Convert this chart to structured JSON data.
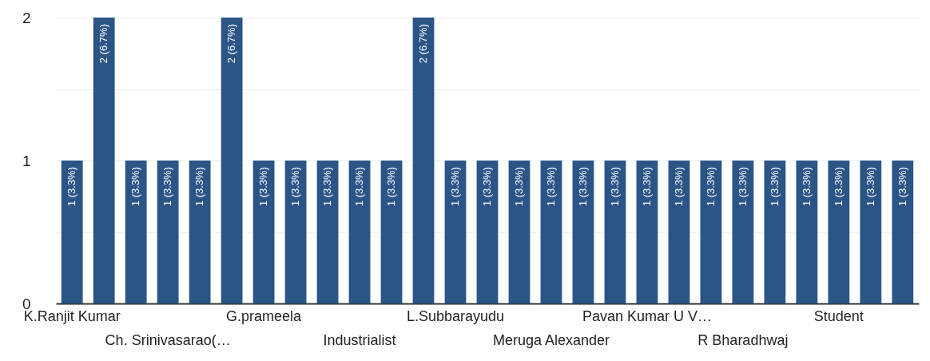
{
  "chart_data": {
    "type": "bar",
    "categories": [
      "K.Ranjit Kumar",
      null,
      null,
      "Ch. Srinivasarao(…",
      null,
      null,
      "G.prameela",
      null,
      null,
      "Industrialist",
      null,
      null,
      "L.Subbarayudu",
      null,
      null,
      "Meruga Alexander",
      null,
      null,
      "Pavan Kumar U V…",
      null,
      null,
      "R Bharadhwaj",
      null,
      null,
      "Student",
      null,
      null
    ],
    "values": [
      1,
      2,
      1,
      1,
      1,
      2,
      1,
      1,
      1,
      1,
      1,
      2,
      1,
      1,
      1,
      1,
      1,
      1,
      1,
      1,
      1,
      1,
      1,
      1,
      1,
      1,
      1
    ],
    "value_labels": [
      "1 (3.3%)",
      "2 (6.7%)",
      "1 (3.3%)",
      "1 (3.3%)",
      "1 (3.3%)",
      "2 (6.7%)",
      "1 (3.3%)",
      "1 (3.3%)",
      "1 (3.3%)",
      "1 (3.3%)",
      "1 (3.3%)",
      "2 (6.7%)",
      "1 (3.3%)",
      "1 (3.3%)",
      "1 (3.3%)",
      "1 (3.3%)",
      "1 (3.3%)",
      "1 (3.3%)",
      "1 (3.3%)",
      "1 (3.3%)",
      "1 (3.3%)",
      "1 (3.3%)",
      "1 (3.3%)",
      "1 (3.3%)",
      "1 (3.3%)",
      "1 (3.3%)",
      "1 (3.3%)"
    ],
    "color": "#2b5587",
    "ylim": [
      0,
      2
    ],
    "yticks": [
      0,
      {
        "value": 0.5,
        "label": null
      },
      1,
      {
        "value": 1.5,
        "label": null
      },
      2
    ],
    "grid": true
  }
}
